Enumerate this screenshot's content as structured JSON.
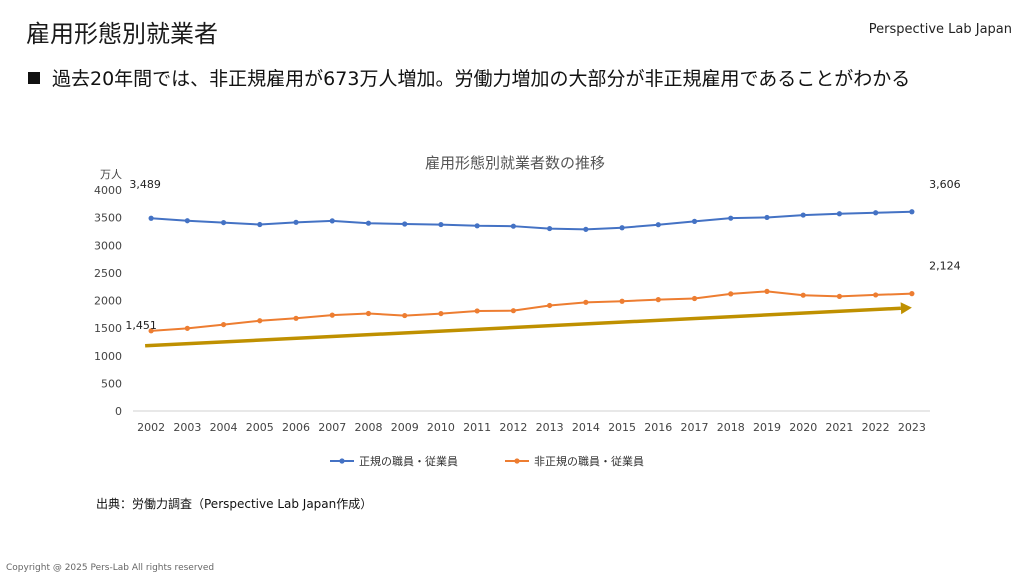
{
  "header": {
    "title": "雇用形態別就業者",
    "brand": "Perspective Lab Japan"
  },
  "bullet": {
    "text": "過去20年間では、非正規雇用が673万人増加。労働力増加の大部分が非正規雇用であることがわかる"
  },
  "footer": {
    "source": "出典：労働力調査（Perspective Lab Japan作成）",
    "copyright": "Copyright @ 2025 Pers-Lab All rights reserved"
  },
  "colors": {
    "series_regular": "#4472C4",
    "series_nonregular": "#ED7D31",
    "trend_arrow": "#BF9000"
  },
  "chart_data": {
    "type": "line",
    "title": "雇用形態別就業者数の推移",
    "ylabel": "万人",
    "xlabel": "",
    "ylim": [
      0,
      4000
    ],
    "yticks": [
      0,
      500,
      1000,
      1500,
      2000,
      2500,
      3000,
      3500,
      4000
    ],
    "grid": false,
    "legend": "bottom",
    "categories": [
      "2002",
      "2003",
      "2004",
      "2005",
      "2006",
      "2007",
      "2008",
      "2009",
      "2010",
      "2011",
      "2012",
      "2013",
      "2014",
      "2015",
      "2016",
      "2017",
      "2018",
      "2019",
      "2020",
      "2021",
      "2022",
      "2023"
    ],
    "series": [
      {
        "name": "正規の職員・従業員",
        "values": [
          3489,
          3444,
          3410,
          3375,
          3415,
          3441,
          3399,
          3385,
          3374,
          3352,
          3345,
          3302,
          3288,
          3317,
          3372,
          3432,
          3490,
          3503,
          3546,
          3570,
          3588,
          3606
        ]
      },
      {
        "name": "非正規の職員・従業員",
        "values": [
          1451,
          1496,
          1564,
          1634,
          1678,
          1735,
          1765,
          1727,
          1763,
          1811,
          1816,
          1910,
          1967,
          1986,
          2016,
          2036,
          2120,
          2165,
          2096,
          2075,
          2101,
          2124
        ]
      }
    ],
    "data_labels": [
      {
        "series": 0,
        "index": 0,
        "text": "3,489"
      },
      {
        "series": 0,
        "index": 21,
        "text": "3,606"
      },
      {
        "series": 1,
        "index": 0,
        "text": "1,451"
      },
      {
        "series": 1,
        "index": 21,
        "text": "2,124"
      }
    ],
    "trend_arrow": {
      "from": [
        0,
        1180
      ],
      "to": [
        21,
        1870
      ]
    }
  }
}
